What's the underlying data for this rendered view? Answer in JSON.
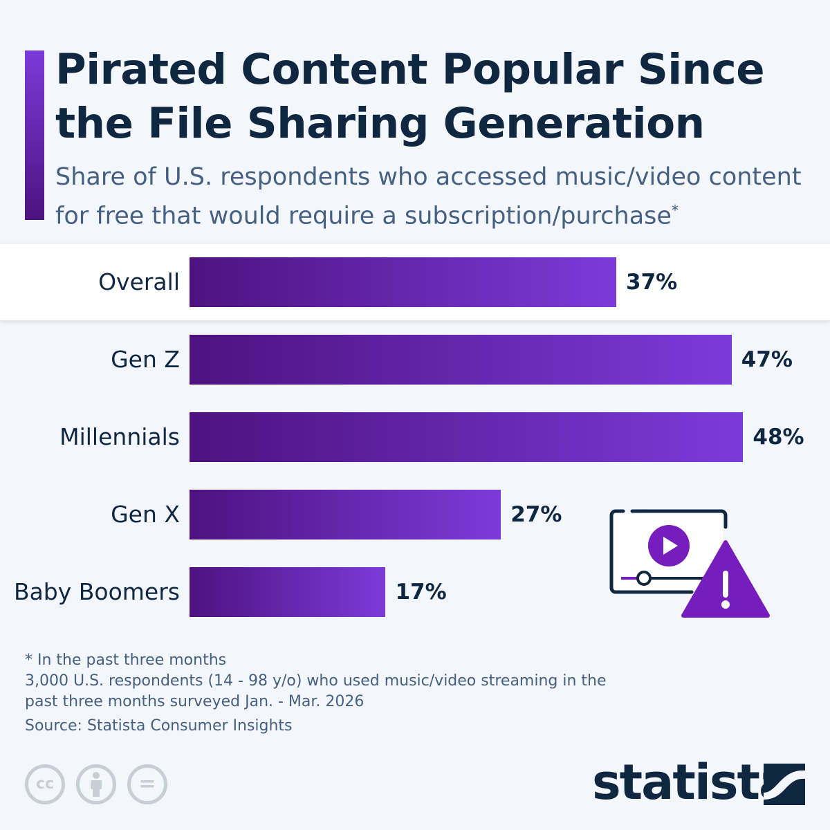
{
  "chart_data": {
    "type": "bar",
    "orientation": "horizontal",
    "title": "Pirated Content Popular Since the File Sharing Generation",
    "subtitle": "Share of U.S. respondents who accessed music/video content for free that would require a subscription/purchase",
    "subtitle_mark": "*",
    "categories": [
      "Overall",
      "Gen Z",
      "Millennials",
      "Gen X",
      "Baby Boomers"
    ],
    "values": [
      37,
      47,
      48,
      27,
      17
    ],
    "value_labels": [
      "37%",
      "47%",
      "48%",
      "27%",
      "17%"
    ],
    "unit": "%",
    "xlim": [
      0,
      50
    ],
    "highlight": "Overall",
    "colors": {
      "bar_start": "#4e1280",
      "bar_end": "#7b3bd9",
      "icon": "#761dbd"
    }
  },
  "notes": {
    "line1": "* In the past three months",
    "line2": "3,000 U.S. respondents (14 - 98 y/o) who used music/video streaming in the",
    "line3": "past three months surveyed Jan. - Mar. 2026",
    "source": "Source: Statista Consumer Insights"
  },
  "license": {
    "cc": "cc",
    "eq": "="
  },
  "brand": "statista"
}
